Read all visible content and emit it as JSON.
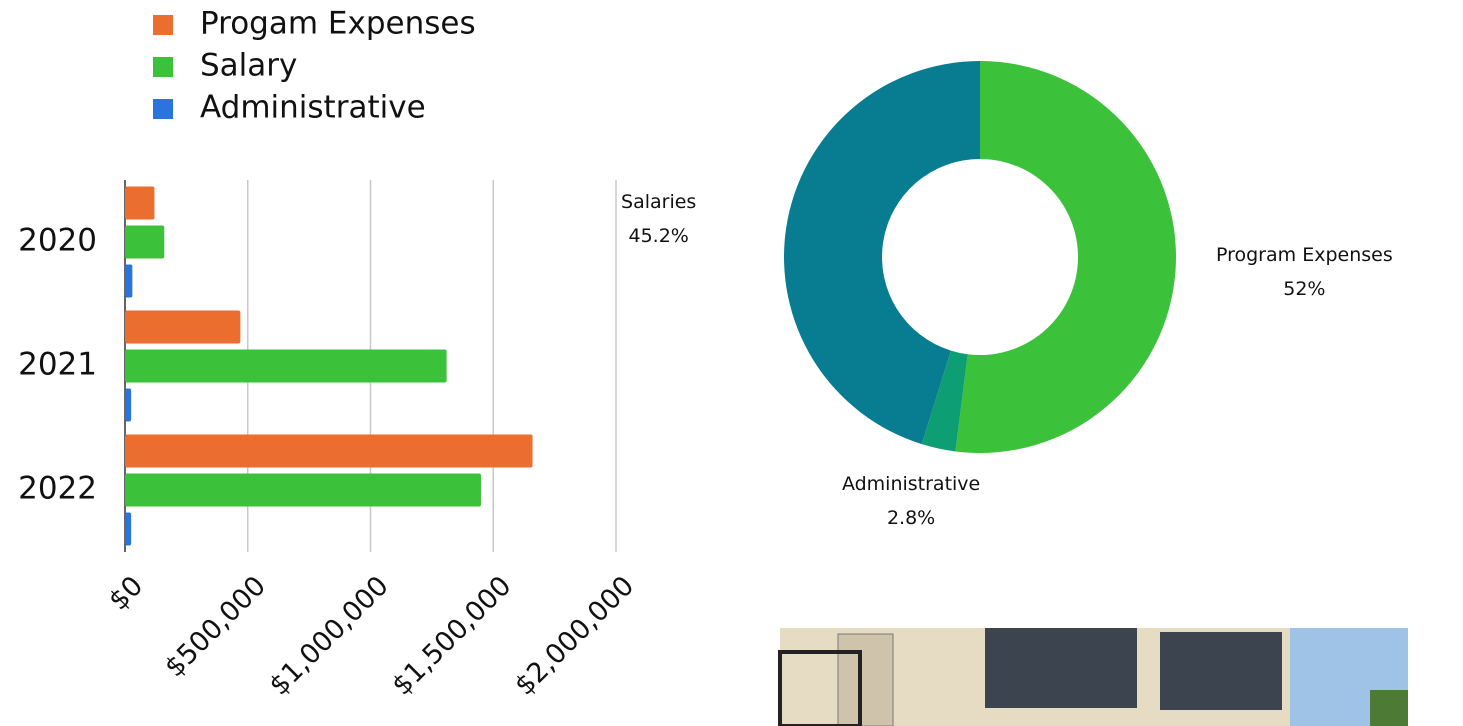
{
  "chart_data": [
    {
      "type": "bar",
      "orientation": "horizontal",
      "categories": [
        "2020",
        "2021",
        "2022"
      ],
      "series": [
        {
          "name": "Progam Expenses",
          "color": "#ec6e2e",
          "values": [
            120000,
            470000,
            1660000
          ]
        },
        {
          "name": "Salary",
          "color": "#3cc13b",
          "values": [
            160000,
            1310000,
            1450000
          ]
        },
        {
          "name": "Administrative",
          "color": "#2a74e0",
          "values": [
            30000,
            25000,
            25000
          ]
        }
      ],
      "xlim": [
        0,
        2000000
      ],
      "xticks": [
        {
          "value": 0,
          "label": "$0"
        },
        {
          "value": 500000,
          "label": "$500,000"
        },
        {
          "value": 1000000,
          "label": "$1,000,000"
        },
        {
          "value": 1500000,
          "label": "$1,500,000"
        },
        {
          "value": 2000000,
          "label": "$2,000,000"
        }
      ],
      "grid": true,
      "legend": "top-left"
    },
    {
      "type": "donut",
      "categories": [
        "Program Expenses",
        "Administrative",
        "Salaries"
      ],
      "values": [
        52,
        2.8,
        45.2
      ],
      "value_labels": [
        "52%",
        "2.8%",
        "45.2%"
      ],
      "colors": [
        "#3cc13b",
        "#0e9e74",
        "#087d92"
      ]
    }
  ]
}
